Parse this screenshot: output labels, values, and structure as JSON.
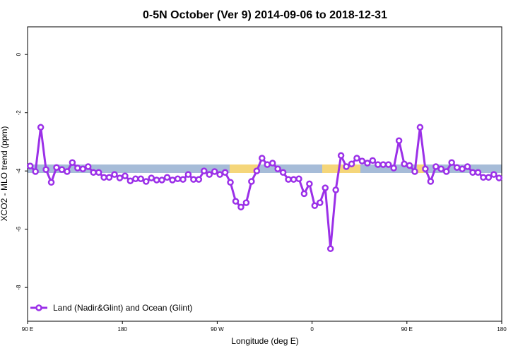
{
  "chart_data": {
    "type": "line",
    "title": "0-5N October (Ver 9)   2014-09-06 to 2018-12-31",
    "x_label": "Longitude (deg E)",
    "y_label": "XCO2 - MLO trend (ppm)",
    "series": [
      {
        "name": "Land (Nadir&Glint) and Ocean (Glint)",
        "color": "#9b30e8",
        "x": [
          92.5,
          97.5,
          102.5,
          107.5,
          112.5,
          117.5,
          122.5,
          127.5,
          132.5,
          137.5,
          142.5,
          147.5,
          152.5,
          157.5,
          162.5,
          167.5,
          172.5,
          177.5,
          182.5,
          187.5,
          192.5,
          197.5,
          202.5,
          207.5,
          212.5,
          217.5,
          222.5,
          227.5,
          232.5,
          237.5,
          242.5,
          247.5,
          252.5,
          257.5,
          262.5,
          267.5,
          272.5,
          277.5,
          282.5,
          287.5,
          292.5,
          297.5,
          302.5,
          307.5,
          312.5,
          317.5,
          322.5,
          327.5,
          332.5,
          337.5,
          342.5,
          347.5,
          352.5,
          357.5,
          362.5,
          367.5,
          372.5,
          377.5,
          382.5,
          387.5,
          392.5,
          397.5,
          402.5,
          407.5,
          412.5,
          417.5,
          422.5,
          427.5,
          432.5,
          437.5,
          442.5,
          447.5,
          452.5,
          457.5,
          462.5,
          467.5,
          472.5,
          477.5,
          482.5,
          487.5,
          492.5,
          497.5,
          502.5,
          507.5,
          512.5,
          517.5,
          522.5,
          527.5,
          532.5,
          537.5
        ],
        "values": [
          -3.83,
          -4.02,
          -2.5,
          -3.95,
          -4.39,
          -3.88,
          -3.95,
          -4.02,
          -3.71,
          -3.9,
          -3.93,
          -3.85,
          -4.05,
          -4.05,
          -4.22,
          -4.22,
          -4.12,
          -4.24,
          -4.17,
          -4.34,
          -4.27,
          -4.27,
          -4.36,
          -4.24,
          -4.31,
          -4.31,
          -4.22,
          -4.31,
          -4.27,
          -4.29,
          -4.12,
          -4.29,
          -4.29,
          -4.0,
          -4.12,
          -4.02,
          -4.12,
          -4.05,
          -4.39,
          -5.04,
          -5.24,
          -5.09,
          -4.36,
          -4.0,
          -3.56,
          -3.78,
          -3.73,
          -3.93,
          -4.05,
          -4.29,
          -4.29,
          -4.27,
          -4.78,
          -4.44,
          -5.19,
          -5.09,
          -4.58,
          -6.67,
          -4.65,
          -3.47,
          -3.85,
          -3.76,
          -3.56,
          -3.66,
          -3.73,
          -3.64,
          -3.78,
          -3.78,
          -3.78,
          -3.9,
          -2.96,
          -3.76,
          -3.81,
          -4.02,
          -2.5,
          -3.93,
          -4.36,
          -3.85,
          -3.93,
          -4.02,
          -3.71,
          -3.88,
          -3.93,
          -3.85,
          -4.05,
          -4.05,
          -4.22,
          -4.22,
          -4.12,
          -4.24
        ]
      }
    ],
    "xlim": [
      90,
      540
    ],
    "xticks": [
      {
        "value": 90,
        "label": "90 E"
      },
      180,
      {
        "value": 270,
        "label": "90 W"
      },
      {
        "value": 360,
        "label": "0"
      },
      {
        "value": 450,
        "label": "90 E"
      },
      {
        "value": 540,
        "label": "180"
      }
    ],
    "ylim": [
      -9.16,
      0.95
    ],
    "yticks": [
      0,
      -2,
      -4,
      -6,
      -8
    ],
    "legend": "bottom-left"
  }
}
